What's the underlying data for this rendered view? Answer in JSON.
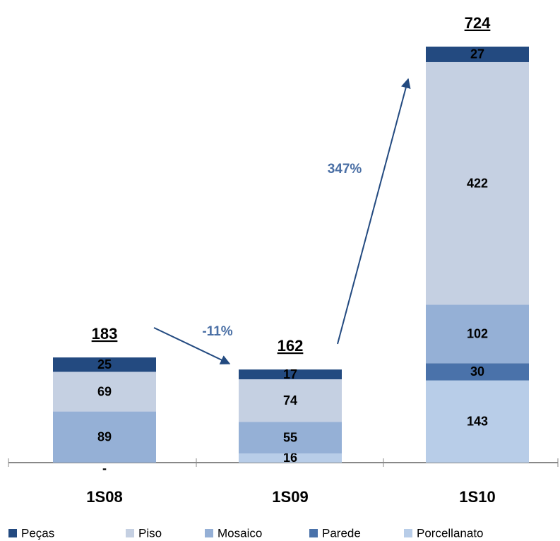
{
  "chart_data": {
    "type": "stacked_bar",
    "categories": [
      "1S08",
      "1S09",
      "1S10"
    ],
    "series": [
      {
        "name": "Porcellanato",
        "color": "#b8cde8",
        "values": [
          0,
          16,
          143
        ],
        "value_labels": [
          "-",
          "16",
          "143"
        ]
      },
      {
        "name": "Parede",
        "color": "#4a72aa",
        "values": [
          null,
          null,
          30
        ]
      },
      {
        "name": "Mosaico",
        "color": "#95b0d6",
        "values": [
          89,
          55,
          102
        ]
      },
      {
        "name": "Piso",
        "color": "#c5d0e2",
        "values": [
          69,
          74,
          422
        ]
      },
      {
        "name": "Peças",
        "color": "#234a80",
        "values": [
          25,
          17,
          27
        ]
      }
    ],
    "legend_order": [
      "Peças",
      "Piso",
      "Mosaico",
      "Parede",
      "Porcellanato"
    ],
    "totals": [
      183,
      162,
      724
    ],
    "annotations": [
      "-11%",
      "347%"
    ]
  }
}
